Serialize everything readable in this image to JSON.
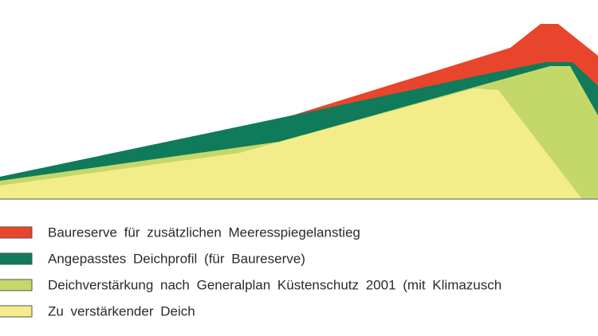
{
  "legend": {
    "items": [
      {
        "label": "Baureserve für zusätzlichen Meeresspiegelanstieg"
      },
      {
        "label": "Angepasstes Deichprofil (für Baureserve)"
      },
      {
        "label": "Deichverstärkung nach Generalplan Küstenschutz 2001 (mit Klimazusch"
      },
      {
        "label": "Zu verstärkender Deich"
      }
    ]
  }
}
